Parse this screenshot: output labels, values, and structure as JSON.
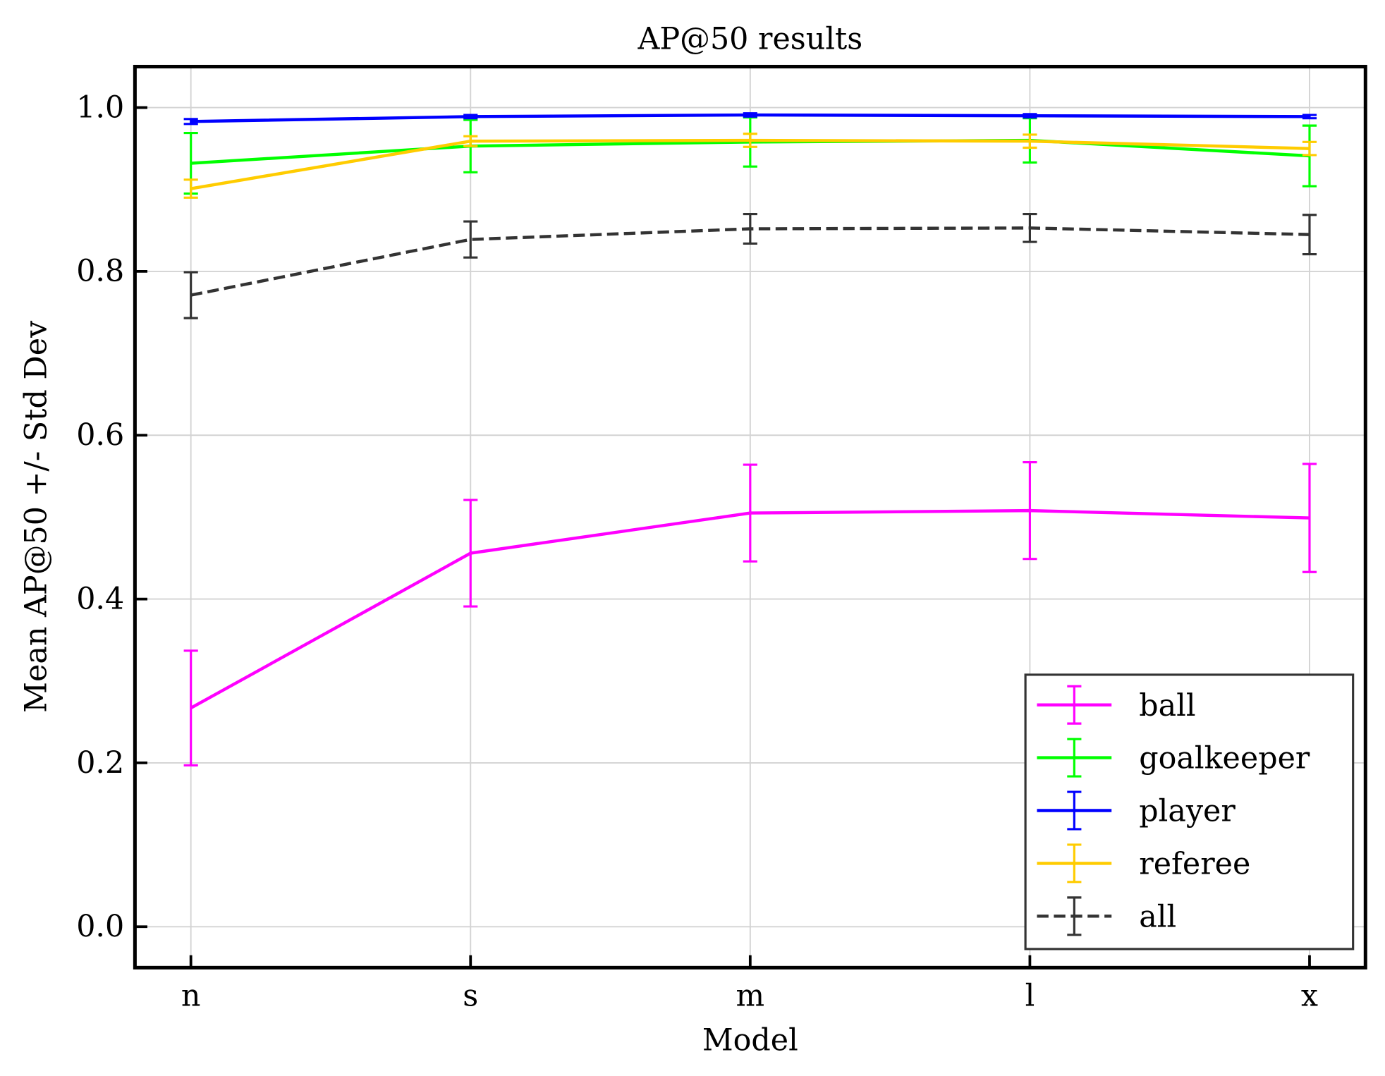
{
  "chart_data": {
    "type": "line",
    "title": "AP@50 results",
    "xlabel": "Model",
    "ylabel": "Mean AP@50 +/- Std Dev",
    "categories": [
      "n",
      "s",
      "m",
      "l",
      "x"
    ],
    "ylim": [
      -0.05,
      1.05
    ],
    "yticks": [
      "0.0",
      "0.2",
      "0.4",
      "0.6",
      "0.8",
      "1.0"
    ],
    "grid": true,
    "legend_placement": "lower-right",
    "series": [
      {
        "name": "ball",
        "color": "#ff00ff",
        "dashed": false,
        "values": [
          0.267,
          0.456,
          0.505,
          0.508,
          0.499
        ],
        "errors": [
          0.07,
          0.065,
          0.059,
          0.059,
          0.066
        ]
      },
      {
        "name": "goalkeeper",
        "color": "#00ff00",
        "dashed": false,
        "values": [
          0.932,
          0.953,
          0.958,
          0.96,
          0.941
        ],
        "errors": [
          0.037,
          0.032,
          0.03,
          0.027,
          0.037
        ]
      },
      {
        "name": "player",
        "color": "#0000ff",
        "dashed": false,
        "values": [
          0.983,
          0.989,
          0.991,
          0.99,
          0.989
        ],
        "errors": [
          0.003,
          0.002,
          0.002,
          0.002,
          0.002
        ]
      },
      {
        "name": "referee",
        "color": "#ffcc00",
        "dashed": false,
        "values": [
          0.901,
          0.959,
          0.96,
          0.959,
          0.95
        ],
        "errors": [
          0.011,
          0.006,
          0.008,
          0.008,
          0.008
        ]
      },
      {
        "name": "all",
        "color": "#333333",
        "dashed": true,
        "values": [
          0.771,
          0.839,
          0.852,
          0.853,
          0.845
        ],
        "errors": [
          0.028,
          0.022,
          0.018,
          0.017,
          0.024
        ]
      }
    ]
  }
}
